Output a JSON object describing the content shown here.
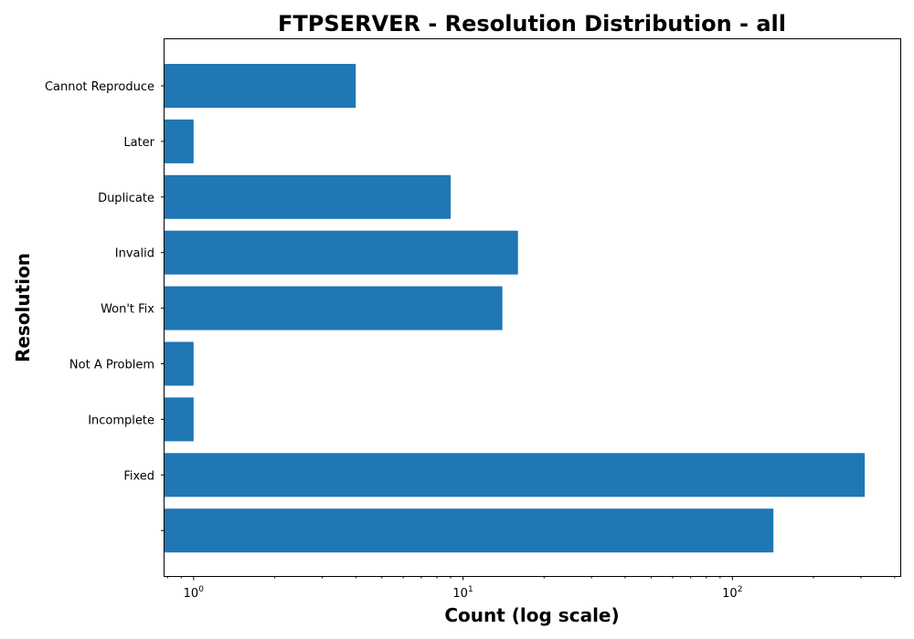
{
  "chart_data": {
    "type": "bar",
    "orientation": "horizontal",
    "title": "FTPSERVER - Resolution Distribution - all",
    "xlabel": "Count (log scale)",
    "ylabel": "Resolution",
    "x_scale": "log",
    "xlim": [
      0.78,
      420
    ],
    "x_ticks": [
      {
        "value": 1,
        "base": "10",
        "exp": "0"
      },
      {
        "value": 10,
        "base": "10",
        "exp": "1"
      },
      {
        "value": 100,
        "base": "10",
        "exp": "2"
      }
    ],
    "categories": [
      "Cannot Reproduce",
      "Later",
      "Duplicate",
      "Invalid",
      "Won't Fix",
      "Not A Problem",
      "Incomplete",
      "Fixed",
      ""
    ],
    "values": [
      4,
      1,
      9,
      16,
      14,
      1,
      1,
      310,
      142
    ],
    "bar_color": "#1f77b4",
    "grid": false,
    "legend": "none"
  }
}
